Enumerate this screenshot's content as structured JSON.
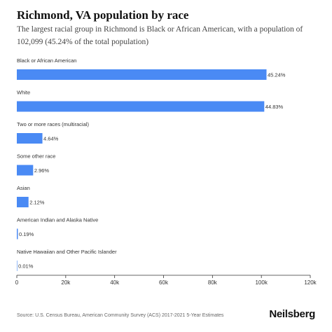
{
  "header": {
    "title": "Richmond, VA population by race",
    "subtitle": "The largest racial group in Richmond is Black or African American, with a population of 102,099 (45.24% of the total population)"
  },
  "footer": {
    "source": "Source: U.S. Census Bureau, American Community Survey (ACS) 2017-2021 5-Year Estimates",
    "brand": "Neilsberg"
  },
  "chart_data": {
    "type": "bar",
    "orientation": "horizontal",
    "title": "Richmond, VA population by race",
    "categories": [
      "Black or African American",
      "White",
      "Two or more races (multiracial)",
      "Some other race",
      "Asian",
      "American Indian and Alaska Native",
      "Native Hawaiian and Other Pacific Islander"
    ],
    "values": [
      102099,
      101180,
      10470,
      6680,
      4785,
      429,
      23
    ],
    "data_labels": [
      "45.24%",
      "44.83%",
      "4.64%",
      "2.96%",
      "2.12%",
      "0.19%",
      "0.01%"
    ],
    "xlim": [
      0,
      120000
    ],
    "x_ticks": [
      0,
      20000,
      40000,
      60000,
      80000,
      100000,
      120000
    ],
    "x_tick_labels": [
      "0",
      "20k",
      "40k",
      "60k",
      "80k",
      "100k",
      "120k"
    ],
    "bar_color": "#4a8af4",
    "grid": false,
    "legend": "none"
  }
}
